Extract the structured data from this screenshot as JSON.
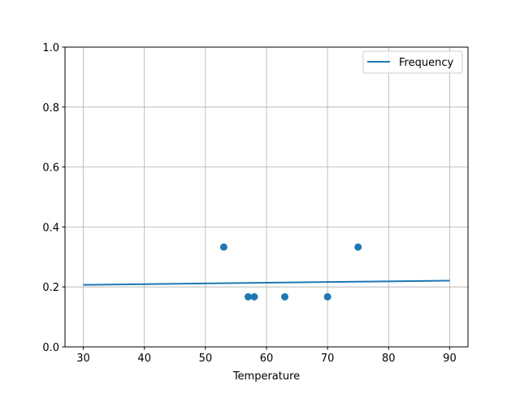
{
  "chart_data": {
    "type": "scatter",
    "title": "",
    "xlabel": "Temperature",
    "ylabel": "",
    "xlim": [
      27,
      93
    ],
    "ylim": [
      0,
      1.0
    ],
    "xticks": [
      30,
      40,
      50,
      60,
      70,
      80,
      90
    ],
    "xtick_labels": [
      "30",
      "40",
      "50",
      "60",
      "70",
      "80",
      "90"
    ],
    "yticks": [
      0,
      0.2,
      0.4,
      0.6,
      0.8,
      1.0
    ],
    "ytick_labels": [
      "0.0",
      "0.2",
      "0.4",
      "0.6",
      "0.8",
      "1.0"
    ],
    "grid": true,
    "legend_position": "top-right",
    "color": "#1f77b4",
    "scatter_points": {
      "x": [
        53,
        57,
        58,
        63,
        70,
        75
      ],
      "y": [
        0.333,
        0.167,
        0.167,
        0.167,
        0.167,
        0.333
      ]
    },
    "series": [
      {
        "name": "Frequency",
        "type": "line",
        "x": [
          30,
          90
        ],
        "y": [
          0.207,
          0.221
        ]
      }
    ]
  }
}
